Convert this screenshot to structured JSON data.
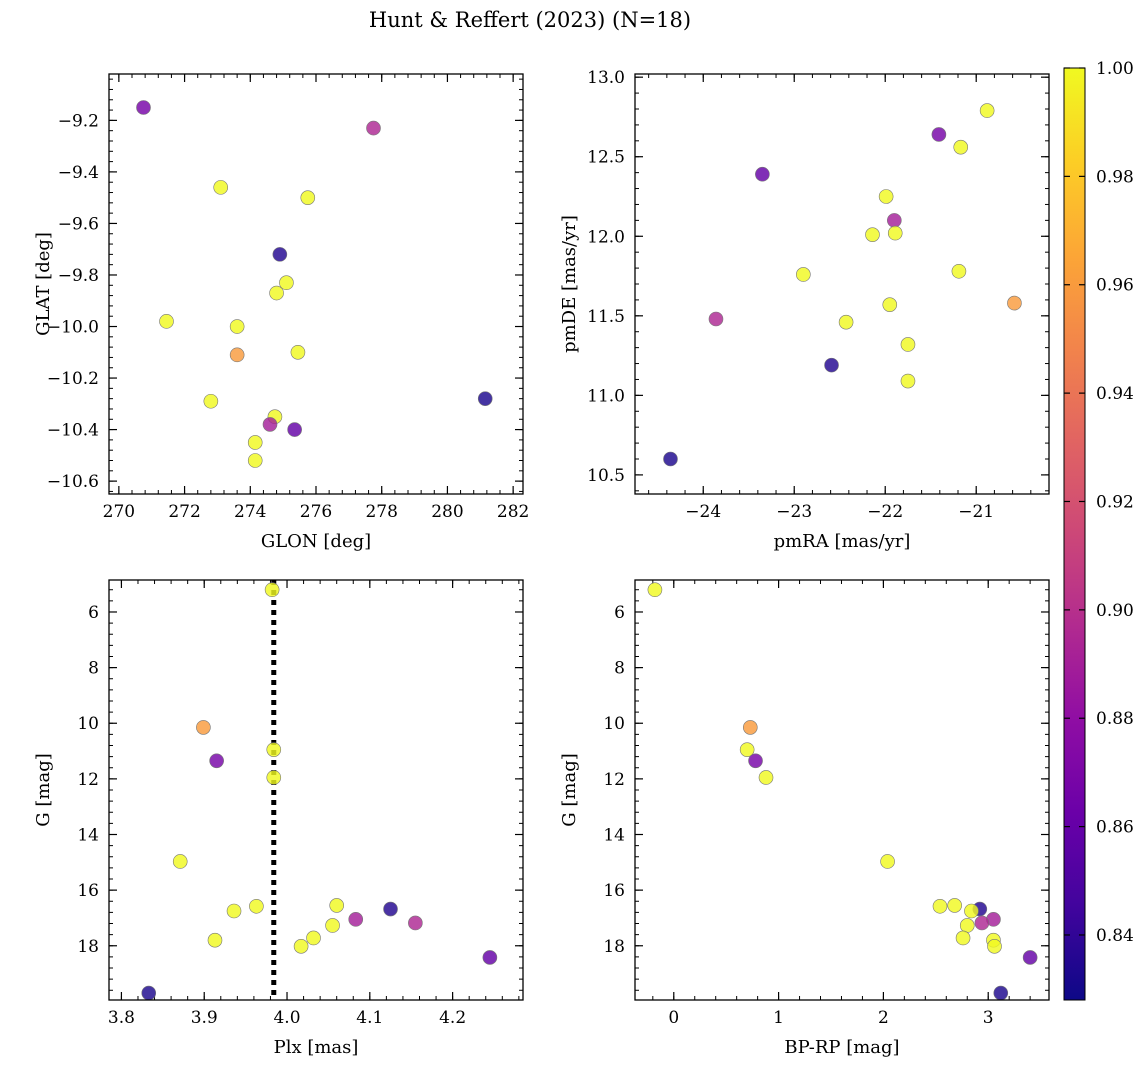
{
  "figure": {
    "title": "Hunt & Reffert (2023) (N=18)"
  },
  "colorbar": {
    "colormap": "plasma",
    "vmin": 0.828,
    "vmax": 1.0,
    "ticks": [
      0.84,
      0.86,
      0.88,
      0.9,
      0.92,
      0.94,
      0.96,
      0.98,
      1.0
    ],
    "tick_labels": [
      "0.84",
      "0.86",
      "0.88",
      "0.90",
      "0.92",
      "0.94",
      "0.96",
      "0.98",
      "1.00"
    ]
  },
  "chart_data": [
    {
      "id": "glon-glat",
      "type": "scatter",
      "xlabel": "GLON [deg]",
      "ylabel": "GLAT [deg]",
      "xlim": [
        269.7,
        282.3
      ],
      "ylim": [
        -10.65,
        -9.02
      ],
      "y_inverted": false,
      "xticks": [
        270,
        272,
        274,
        276,
        278,
        280,
        282
      ],
      "xtick_labels": [
        "270",
        "272",
        "274",
        "276",
        "278",
        "280",
        "282"
      ],
      "yticks": [
        -10.6,
        -10.4,
        -10.2,
        -10.0,
        -9.8,
        -9.6,
        -9.4,
        -9.2
      ],
      "ytick_labels": [
        "−10.6",
        "−10.4",
        "−10.2",
        "−10.0",
        "−9.8",
        "−9.6",
        "−9.4",
        "−9.2"
      ],
      "points": [
        {
          "x": 270.75,
          "y": -9.15,
          "c": 0.868
        },
        {
          "x": 277.75,
          "y": -9.23,
          "c": 0.895
        },
        {
          "x": 273.1,
          "y": -9.46,
          "c": 1.0
        },
        {
          "x": 275.75,
          "y": -9.5,
          "c": 1.0
        },
        {
          "x": 274.9,
          "y": -9.72,
          "c": 0.835
        },
        {
          "x": 275.1,
          "y": -9.83,
          "c": 1.0
        },
        {
          "x": 274.8,
          "y": -9.87,
          "c": 1.0
        },
        {
          "x": 271.45,
          "y": -9.98,
          "c": 1.0
        },
        {
          "x": 273.6,
          "y": -10.0,
          "c": 1.0
        },
        {
          "x": 273.6,
          "y": -10.11,
          "c": 0.96
        },
        {
          "x": 275.45,
          "y": -10.1,
          "c": 1.0
        },
        {
          "x": 281.15,
          "y": -10.28,
          "c": 0.833
        },
        {
          "x": 272.8,
          "y": -10.29,
          "c": 1.0
        },
        {
          "x": 274.75,
          "y": -10.35,
          "c": 1.0
        },
        {
          "x": 274.6,
          "y": -10.38,
          "c": 0.89
        },
        {
          "x": 275.35,
          "y": -10.4,
          "c": 0.86
        },
        {
          "x": 274.15,
          "y": -10.45,
          "c": 1.0
        },
        {
          "x": 274.15,
          "y": -10.52,
          "c": 1.0
        }
      ]
    },
    {
      "id": "pmra-pmde",
      "type": "scatter",
      "xlabel": "pmRA [mas/yr]",
      "ylabel": "pmDE [mas/yr]",
      "xlim": [
        -24.75,
        -20.2
      ],
      "ylim": [
        10.38,
        13.02
      ],
      "y_inverted": false,
      "xticks": [
        -24,
        -23,
        -22,
        -21
      ],
      "xtick_labels": [
        "−24",
        "−23",
        "−22",
        "−21"
      ],
      "yticks": [
        10.5,
        11.0,
        11.5,
        12.0,
        12.5,
        13.0
      ],
      "ytick_labels": [
        "10.5",
        "11.0",
        "11.5",
        "12.0",
        "12.5",
        "13.0"
      ],
      "points": [
        {
          "x": -20.88,
          "y": 12.79,
          "c": 1.0
        },
        {
          "x": -21.41,
          "y": 12.64,
          "c": 0.868
        },
        {
          "x": -23.35,
          "y": 12.39,
          "c": 0.86
        },
        {
          "x": -21.17,
          "y": 12.56,
          "c": 1.0
        },
        {
          "x": -21.99,
          "y": 12.25,
          "c": 1.0
        },
        {
          "x": -21.9,
          "y": 12.1,
          "c": 0.89
        },
        {
          "x": -22.14,
          "y": 12.01,
          "c": 1.0
        },
        {
          "x": -21.89,
          "y": 12.02,
          "c": 1.0
        },
        {
          "x": -22.9,
          "y": 11.76,
          "c": 1.0
        },
        {
          "x": -21.19,
          "y": 11.78,
          "c": 1.0
        },
        {
          "x": -21.95,
          "y": 11.57,
          "c": 1.0
        },
        {
          "x": -23.86,
          "y": 11.48,
          "c": 0.895
        },
        {
          "x": -22.43,
          "y": 11.46,
          "c": 1.0
        },
        {
          "x": -20.58,
          "y": 11.58,
          "c": 0.96
        },
        {
          "x": -21.75,
          "y": 11.32,
          "c": 1.0
        },
        {
          "x": -22.59,
          "y": 11.19,
          "c": 0.835
        },
        {
          "x": -21.75,
          "y": 11.09,
          "c": 1.0
        },
        {
          "x": -24.36,
          "y": 10.6,
          "c": 0.833
        }
      ]
    },
    {
      "id": "plx-g",
      "type": "scatter",
      "xlabel": "Plx [mas]",
      "ylabel": "G [mag]",
      "xlim": [
        3.785,
        4.285
      ],
      "ylim": [
        19.95,
        4.85
      ],
      "y_inverted": true,
      "vline": {
        "x": 3.984,
        "style": "dotted"
      },
      "xticks": [
        3.8,
        3.9,
        4.0,
        4.1,
        4.2
      ],
      "xtick_labels": [
        "3.8",
        "3.9",
        "4.0",
        "4.1",
        "4.2"
      ],
      "yticks": [
        6,
        8,
        10,
        12,
        14,
        16,
        18
      ],
      "ytick_labels": [
        "6",
        "8",
        "10",
        "12",
        "14",
        "16",
        "18"
      ],
      "points": [
        {
          "x": 3.982,
          "y": 5.2,
          "c": 1.0
        },
        {
          "x": 3.899,
          "y": 10.15,
          "c": 0.96
        },
        {
          "x": 3.984,
          "y": 10.95,
          "c": 1.0
        },
        {
          "x": 3.915,
          "y": 11.35,
          "c": 0.868
        },
        {
          "x": 3.984,
          "y": 11.95,
          "c": 1.0
        },
        {
          "x": 3.871,
          "y": 14.97,
          "c": 1.0
        },
        {
          "x": 4.06,
          "y": 16.55,
          "c": 1.0
        },
        {
          "x": 3.963,
          "y": 16.58,
          "c": 1.0
        },
        {
          "x": 4.125,
          "y": 16.68,
          "c": 0.835
        },
        {
          "x": 3.936,
          "y": 16.75,
          "c": 1.0
        },
        {
          "x": 4.083,
          "y": 17.05,
          "c": 0.89
        },
        {
          "x": 4.155,
          "y": 17.18,
          "c": 0.895
        },
        {
          "x": 4.055,
          "y": 17.27,
          "c": 1.0
        },
        {
          "x": 4.032,
          "y": 17.72,
          "c": 1.0
        },
        {
          "x": 3.913,
          "y": 17.8,
          "c": 1.0
        },
        {
          "x": 4.017,
          "y": 18.02,
          "c": 1.0
        },
        {
          "x": 4.245,
          "y": 18.42,
          "c": 0.86
        },
        {
          "x": 3.833,
          "y": 19.7,
          "c": 0.833
        }
      ]
    },
    {
      "id": "bprp-g",
      "type": "scatter",
      "xlabel": "BP-RP [mag]",
      "ylabel": "G [mag]",
      "xlim": [
        -0.37,
        3.58
      ],
      "ylim": [
        19.95,
        4.85
      ],
      "y_inverted": true,
      "xticks": [
        0,
        1,
        2,
        3
      ],
      "xtick_labels": [
        "0",
        "1",
        "2",
        "3"
      ],
      "yticks": [
        6,
        8,
        10,
        12,
        14,
        16,
        18
      ],
      "ytick_labels": [
        "6",
        "8",
        "10",
        "12",
        "14",
        "16",
        "18"
      ],
      "points": [
        {
          "x": -0.18,
          "y": 5.2,
          "c": 1.0
        },
        {
          "x": 0.73,
          "y": 10.15,
          "c": 0.96
        },
        {
          "x": 0.7,
          "y": 10.95,
          "c": 1.0
        },
        {
          "x": 0.78,
          "y": 11.35,
          "c": 0.868
        },
        {
          "x": 0.88,
          "y": 11.95,
          "c": 1.0
        },
        {
          "x": 2.04,
          "y": 14.97,
          "c": 1.0
        },
        {
          "x": 2.54,
          "y": 16.58,
          "c": 1.0
        },
        {
          "x": 2.68,
          "y": 16.55,
          "c": 1.0
        },
        {
          "x": 2.92,
          "y": 16.68,
          "c": 0.835
        },
        {
          "x": 2.84,
          "y": 16.75,
          "c": 1.0
        },
        {
          "x": 3.05,
          "y": 17.05,
          "c": 0.89
        },
        {
          "x": 2.94,
          "y": 17.18,
          "c": 0.895
        },
        {
          "x": 2.8,
          "y": 17.27,
          "c": 1.0
        },
        {
          "x": 2.76,
          "y": 17.72,
          "c": 1.0
        },
        {
          "x": 3.05,
          "y": 17.8,
          "c": 1.0
        },
        {
          "x": 3.06,
          "y": 18.02,
          "c": 1.0
        },
        {
          "x": 3.4,
          "y": 18.42,
          "c": 0.86
        },
        {
          "x": 3.12,
          "y": 19.7,
          "c": 0.833
        }
      ]
    }
  ]
}
